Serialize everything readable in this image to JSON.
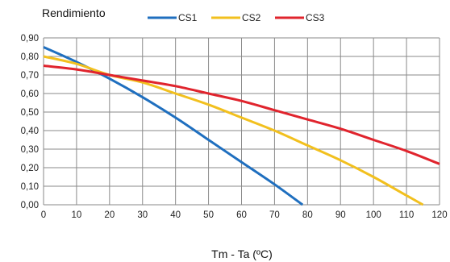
{
  "chart_data": {
    "type": "line",
    "title": "",
    "ylabel": "Rendimiento",
    "xlabel": "Tm - Ta (ºC)",
    "xlim": [
      0,
      120
    ],
    "ylim": [
      0,
      0.9
    ],
    "x_ticks": [
      "0",
      "10",
      "20",
      "30",
      "40",
      "50",
      "60",
      "70",
      "80",
      "90",
      "100",
      "110",
      "120"
    ],
    "y_ticks": [
      "0,00",
      "0,10",
      "0,20",
      "0,30",
      "0,40",
      "0,50",
      "0,60",
      "0,70",
      "0,80",
      "0,90"
    ],
    "grid": true,
    "legend_position": "top",
    "series": [
      {
        "name": "CS1",
        "color": "#1f6fbf",
        "points": [
          [
            0,
            0.85
          ],
          [
            10,
            0.77
          ],
          [
            20,
            0.68
          ],
          [
            30,
            0.58
          ],
          [
            40,
            0.47
          ],
          [
            50,
            0.35
          ],
          [
            60,
            0.23
          ],
          [
            70,
            0.11
          ],
          [
            78.5,
            0.0
          ]
        ]
      },
      {
        "name": "CS2",
        "color": "#f2c01e",
        "points": [
          [
            0,
            0.8
          ],
          [
            10,
            0.76
          ],
          [
            20,
            0.7
          ],
          [
            30,
            0.66
          ],
          [
            40,
            0.6
          ],
          [
            50,
            0.54
          ],
          [
            60,
            0.47
          ],
          [
            70,
            0.4
          ],
          [
            80,
            0.32
          ],
          [
            90,
            0.24
          ],
          [
            100,
            0.15
          ],
          [
            110,
            0.05
          ],
          [
            115,
            0.0
          ]
        ]
      },
      {
        "name": "CS3",
        "color": "#e0242d",
        "points": [
          [
            0,
            0.75
          ],
          [
            10,
            0.73
          ],
          [
            20,
            0.7
          ],
          [
            30,
            0.67
          ],
          [
            40,
            0.64
          ],
          [
            50,
            0.6
          ],
          [
            60,
            0.56
          ],
          [
            70,
            0.51
          ],
          [
            80,
            0.46
          ],
          [
            90,
            0.41
          ],
          [
            100,
            0.35
          ],
          [
            110,
            0.29
          ],
          [
            120,
            0.22
          ]
        ]
      }
    ]
  }
}
